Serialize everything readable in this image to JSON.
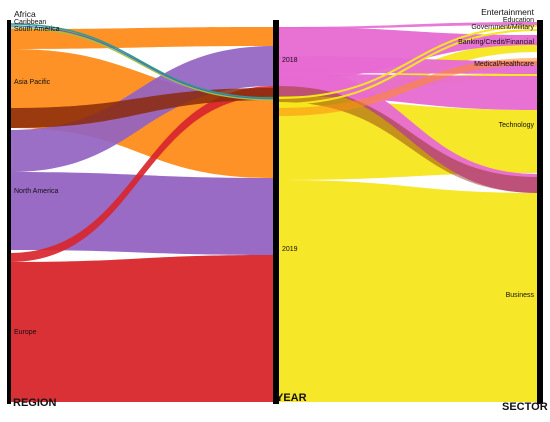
{
  "diagram": {
    "axes": [
      {
        "key": "region",
        "label": "REGION"
      },
      {
        "key": "year",
        "label": "YEAR"
      },
      {
        "key": "sector",
        "label": "SECTOR"
      }
    ],
    "regions": [
      {
        "id": "africa",
        "label": "Africa",
        "color": "#2a9d8f"
      },
      {
        "id": "caribbean",
        "label": "Caribbean",
        "color": "#4c6fb5"
      },
      {
        "id": "south-america",
        "label": "South America",
        "color": "#9bc53d"
      },
      {
        "id": "asia-pacific",
        "label": "Asia Pacific",
        "color": "#ff8c1a"
      },
      {
        "id": "north-america",
        "label": "North America",
        "color": "#9463c2"
      },
      {
        "id": "europe",
        "label": "Europe",
        "color": "#d8262c"
      }
    ],
    "years": [
      {
        "id": "2018",
        "label": "2018",
        "color": "#e76ad2"
      },
      {
        "id": "2019",
        "label": "2019",
        "color": "#f6e61d"
      }
    ],
    "sectors": [
      {
        "id": "entertainment",
        "label": "Entertainment"
      },
      {
        "id": "education",
        "label": "Education"
      },
      {
        "id": "government-military",
        "label": "Government/Military"
      },
      {
        "id": "banking",
        "label": "Banking/Credit/Financial"
      },
      {
        "id": "medical",
        "label": "Medical/Healthcare"
      },
      {
        "id": "technology",
        "label": "Technology"
      },
      {
        "id": "business",
        "label": "Business"
      }
    ]
  }
}
